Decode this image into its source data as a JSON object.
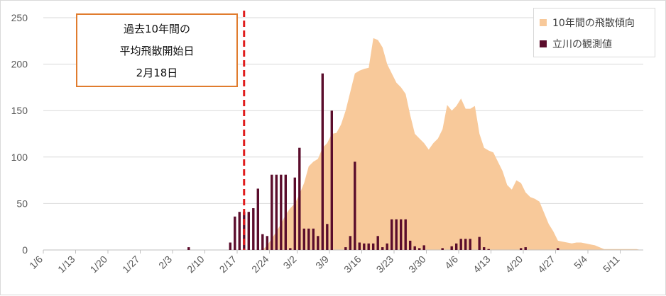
{
  "chart_data": {
    "type": "bar+area",
    "ylim": [
      0,
      250
    ],
    "yticks": [
      "0",
      "50",
      "100",
      "150",
      "200",
      "250"
    ],
    "xticks": [
      "1/6",
      "1/13",
      "1/20",
      "1/27",
      "2/3",
      "2/10",
      "2/17",
      "2/24",
      "3/2",
      "3/9",
      "3/16",
      "3/23",
      "3/30",
      "4/6",
      "4/13",
      "4/20",
      "4/27",
      "5/4",
      "5/11"
    ],
    "x_start": "1/6",
    "colors": {
      "area": "#f8c99a",
      "bars": "#5b0d2c",
      "marker": "#e01c1c",
      "annot_border": "#e07c2e"
    },
    "series": [
      {
        "name": "10年間の飛散傾向",
        "kind": "area",
        "points": [
          [
            "2/19",
            0
          ],
          [
            "2/22",
            0
          ],
          [
            "2/23",
            5
          ],
          [
            "2/24",
            12
          ],
          [
            "2/25",
            20
          ],
          [
            "2/26",
            28
          ],
          [
            "2/27",
            38
          ],
          [
            "2/28",
            45
          ],
          [
            "3/1",
            50
          ],
          [
            "3/2",
            60
          ],
          [
            "3/3",
            72
          ],
          [
            "3/4",
            90
          ],
          [
            "3/5",
            95
          ],
          [
            "3/6",
            98
          ],
          [
            "3/7",
            110
          ],
          [
            "3/8",
            115
          ],
          [
            "3/9",
            125
          ],
          [
            "3/10",
            126
          ],
          [
            "3/11",
            135
          ],
          [
            "3/12",
            150
          ],
          [
            "3/13",
            170
          ],
          [
            "3/14",
            190
          ],
          [
            "3/15",
            193
          ],
          [
            "3/16",
            195
          ],
          [
            "3/17",
            196
          ],
          [
            "3/18",
            228
          ],
          [
            "3/19",
            226
          ],
          [
            "3/20",
            218
          ],
          [
            "3/21",
            200
          ],
          [
            "3/22",
            190
          ],
          [
            "3/23",
            180
          ],
          [
            "3/24",
            175
          ],
          [
            "3/25",
            168
          ],
          [
            "3/26",
            145
          ],
          [
            "3/27",
            125
          ],
          [
            "3/28",
            120
          ],
          [
            "3/29",
            115
          ],
          [
            "3/30",
            108
          ],
          [
            "3/31",
            115
          ],
          [
            "4/1",
            120
          ],
          [
            "4/2",
            130
          ],
          [
            "4/3",
            156
          ],
          [
            "4/4",
            150
          ],
          [
            "4/5",
            155
          ],
          [
            "4/6",
            163
          ],
          [
            "4/7",
            152
          ],
          [
            "4/8",
            152
          ],
          [
            "4/9",
            155
          ],
          [
            "4/10",
            125
          ],
          [
            "4/11",
            110
          ],
          [
            "4/12",
            107
          ],
          [
            "4/13",
            105
          ],
          [
            "4/14",
            95
          ],
          [
            "4/15",
            85
          ],
          [
            "4/16",
            70
          ],
          [
            "4/17",
            65
          ],
          [
            "4/18",
            75
          ],
          [
            "4/19",
            72
          ],
          [
            "4/20",
            62
          ],
          [
            "4/21",
            57
          ],
          [
            "4/22",
            55
          ],
          [
            "4/23",
            52
          ],
          [
            "4/24",
            40
          ],
          [
            "4/25",
            28
          ],
          [
            "4/26",
            20
          ],
          [
            "4/27",
            10
          ],
          [
            "4/28",
            9
          ],
          [
            "4/29",
            8
          ],
          [
            "4/30",
            7
          ],
          [
            "5/1",
            8
          ],
          [
            "5/2",
            8
          ],
          [
            "5/3",
            7
          ],
          [
            "5/4",
            6
          ],
          [
            "5/5",
            5
          ],
          [
            "5/6",
            3
          ],
          [
            "5/7",
            1
          ],
          [
            "5/8",
            1
          ],
          [
            "5/9",
            1
          ],
          [
            "5/10",
            1
          ],
          [
            "5/11",
            1
          ],
          [
            "5/12",
            1
          ],
          [
            "5/13",
            1
          ],
          [
            "5/14",
            1
          ],
          [
            "5/15",
            0
          ]
        ]
      },
      {
        "name": "立川の観測値",
        "kind": "bar",
        "points": [
          [
            "2/6",
            3
          ],
          [
            "2/15",
            8
          ],
          [
            "2/16",
            36
          ],
          [
            "2/17",
            41
          ],
          [
            "2/18",
            41
          ],
          [
            "2/19",
            41
          ],
          [
            "2/20",
            45
          ],
          [
            "2/21",
            66
          ],
          [
            "2/22",
            17
          ],
          [
            "2/23",
            15
          ],
          [
            "2/24",
            81
          ],
          [
            "2/25",
            81
          ],
          [
            "2/26",
            81
          ],
          [
            "2/27",
            81
          ],
          [
            "2/28",
            2
          ],
          [
            "3/1",
            78
          ],
          [
            "3/2",
            110
          ],
          [
            "3/3",
            23
          ],
          [
            "3/4",
            23
          ],
          [
            "3/5",
            23
          ],
          [
            "3/6",
            15
          ],
          [
            "3/7",
            190
          ],
          [
            "3/8",
            28
          ],
          [
            "3/9",
            150
          ],
          [
            "3/12",
            3
          ],
          [
            "3/13",
            15
          ],
          [
            "3/14",
            95
          ],
          [
            "3/15",
            8
          ],
          [
            "3/16",
            7
          ],
          [
            "3/17",
            7
          ],
          [
            "3/18",
            7
          ],
          [
            "3/19",
            15
          ],
          [
            "3/20",
            3
          ],
          [
            "3/21",
            7
          ],
          [
            "3/22",
            33
          ],
          [
            "3/23",
            33
          ],
          [
            "3/24",
            33
          ],
          [
            "3/25",
            33
          ],
          [
            "3/26",
            10
          ],
          [
            "3/27",
            4
          ],
          [
            "3/28",
            2
          ],
          [
            "3/29",
            5
          ],
          [
            "4/2",
            2
          ],
          [
            "4/4",
            4
          ],
          [
            "4/5",
            7
          ],
          [
            "4/6",
            12
          ],
          [
            "4/7",
            12
          ],
          [
            "4/8",
            12
          ],
          [
            "4/10",
            14
          ],
          [
            "4/11",
            3
          ],
          [
            "4/12",
            1
          ],
          [
            "4/19",
            2
          ],
          [
            "4/20",
            3
          ],
          [
            "4/27",
            2
          ]
        ]
      }
    ],
    "annotation": {
      "lines": [
        "過去10年間の",
        "平均飛散開始日",
        "2月18日"
      ],
      "date": "2/18"
    },
    "legend": "top-right"
  }
}
